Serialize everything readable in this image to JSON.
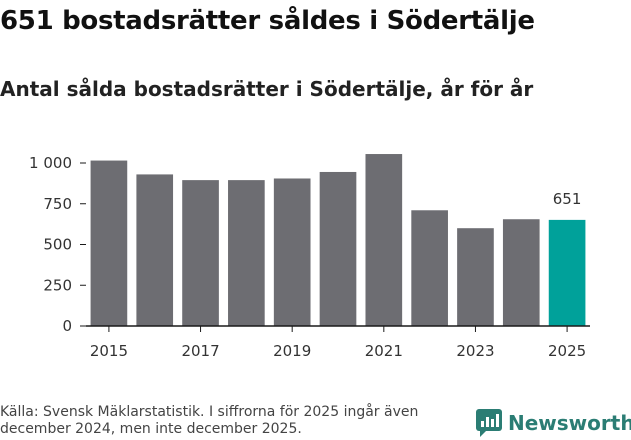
{
  "title": "651 bostadsrätter såldes i Södertälje",
  "subtitle": "Antal sålda bostadsrätter i Södertälje, år för år",
  "footer": "Källa: Svensk Mäklarstatistik. I siffrorna för 2025 ingår även december 2024, men inte december 2025.",
  "brand": "Newsworthy",
  "colors": {
    "bar": "#6d6d72",
    "highlight": "#00a19a",
    "axis": "#1a1a1a",
    "brand": "#2b7d74"
  },
  "chart_data": {
    "type": "bar",
    "categories": [
      "2015",
      "2016",
      "2017",
      "2018",
      "2019",
      "2020",
      "2021",
      "2022",
      "2023",
      "2024",
      "2025"
    ],
    "values": [
      1015,
      930,
      895,
      895,
      905,
      945,
      1055,
      710,
      600,
      655,
      651
    ],
    "highlight_index": 10,
    "data_label": "651",
    "x_tick_labels": [
      "2015",
      "2017",
      "2019",
      "2021",
      "2023",
      "2025"
    ],
    "y_ticks": [
      0,
      250,
      500,
      750,
      1000
    ],
    "y_tick_labels": [
      "0",
      "250",
      "500",
      "750",
      "1 000"
    ],
    "ylim": [
      0,
      1100
    ],
    "grid": false
  }
}
